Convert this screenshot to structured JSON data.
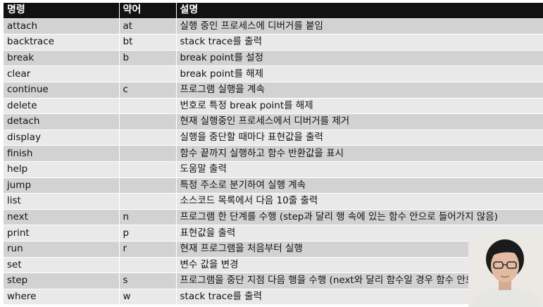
{
  "table": {
    "headers": [
      "명령",
      "약어",
      "설명"
    ],
    "rows": [
      {
        "cmd": "attach",
        "abbr": "at",
        "desc": "실행 중인 프로세스에 디버거를 붙임"
      },
      {
        "cmd": "backtrace",
        "abbr": "bt",
        "desc": "stack trace를 출력"
      },
      {
        "cmd": "break",
        "abbr": "b",
        "desc": "break point를 설정"
      },
      {
        "cmd": "clear",
        "abbr": "",
        "desc": "break point를 해제"
      },
      {
        "cmd": "continue",
        "abbr": "c",
        "desc": "프로그램 실행을 계속"
      },
      {
        "cmd": "delete",
        "abbr": "",
        "desc": "번호로 특정 break point를 해제"
      },
      {
        "cmd": "detach",
        "abbr": "",
        "desc": "현재 실행중인 프로세스에서 디버거를 제거"
      },
      {
        "cmd": "display",
        "abbr": "",
        "desc": "실행을 중단할 때마다 표현값을 출력"
      },
      {
        "cmd": "finish",
        "abbr": "",
        "desc": "함수 끝까지 실행하고 함수 반환값을 표시"
      },
      {
        "cmd": "help",
        "abbr": "",
        "desc": "도움말 출력"
      },
      {
        "cmd": "jump",
        "abbr": "",
        "desc": "특정 주소로 분기하여 실행 계속"
      },
      {
        "cmd": "list",
        "abbr": "",
        "desc": "소스코드 목록에서 다음 10줄 출력"
      },
      {
        "cmd": "next",
        "abbr": "n",
        "desc": "프로그램 한 단계를 수행 (step과 달리 행 속에 있는 함수 안으로 들어가지 않음)"
      },
      {
        "cmd": "print",
        "abbr": "p",
        "desc": "표현값을 출력"
      },
      {
        "cmd": "run",
        "abbr": "r",
        "desc": "현재 프로그램을 처음부터 실행"
      },
      {
        "cmd": "set",
        "abbr": "",
        "desc": "변수 값을 변경"
      },
      {
        "cmd": "step",
        "abbr": "s",
        "desc": "프로그램을 중단 지점 다음 행을 수행 (next와 달리 함수일 경우 함수 안으로"
      },
      {
        "cmd": "where",
        "abbr": "w",
        "desc": "stack trace를 출력"
      }
    ]
  },
  "colors": {
    "header_bg": "#121212",
    "row_dark": "#d2d2d2",
    "row_light": "#e9e9e9"
  }
}
